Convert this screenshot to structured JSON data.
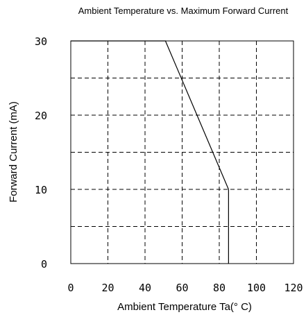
{
  "chart_data": {
    "type": "line",
    "title": "Ambient Temperature vs. Maximum Forward Current",
    "xlabel": "Ambient Temperature Ta(° C)",
    "ylabel": "Forward Current (mA)",
    "xlim": [
      0,
      120
    ],
    "ylim": [
      0,
      30
    ],
    "xticks": [
      "0",
      "20",
      "40",
      "60",
      "80",
      "100",
      "120"
    ],
    "yticks": [
      "0",
      "10",
      "20",
      "30"
    ],
    "grid": true,
    "series": [
      {
        "x": [
          0,
          51,
          85,
          85
        ],
        "y": [
          30,
          30,
          10,
          0
        ]
      }
    ]
  }
}
